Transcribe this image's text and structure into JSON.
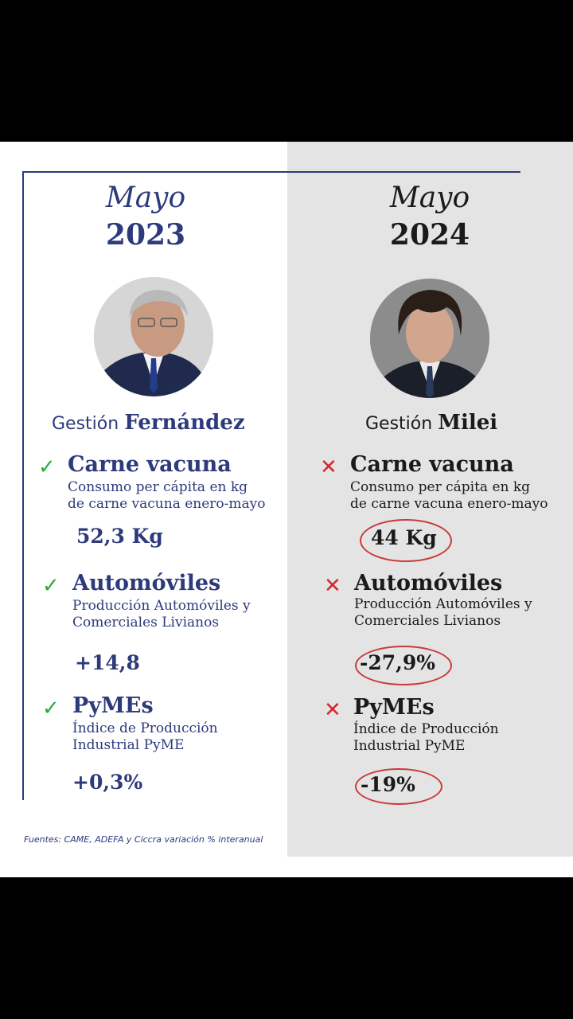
{
  "left": {
    "month": "Mayo",
    "year": "2023",
    "gestion_prefix": "Gestión",
    "gestion_name": "Fernández",
    "metrics": [
      {
        "title": "Carne vacuna",
        "desc1": "Consumo per cápita en kg",
        "desc2": "de carne vacuna enero-mayo",
        "value": "52,3 Kg"
      },
      {
        "title": "Automóviles",
        "desc1": "Producción Automóviles y",
        "desc2": "Comerciales Livianos",
        "value": "+14,8"
      },
      {
        "title": "PyMEs",
        "desc1": "Índice de Producción",
        "desc2": "Industrial PyME",
        "value": "+0,3%"
      }
    ],
    "mark": "✓"
  },
  "right": {
    "month": "Mayo",
    "year": "2024",
    "gestion_prefix": "Gestión",
    "gestion_name": "Milei",
    "metrics": [
      {
        "title": "Carne vacuna",
        "desc1": "Consumo per cápita en kg",
        "desc2": "de carne vacuna enero-mayo",
        "value": "44 Kg"
      },
      {
        "title": "Automóviles",
        "desc1": "Producción Automóviles y",
        "desc2": "Comerciales Livianos",
        "value": "-27,9%"
      },
      {
        "title": "PyMEs",
        "desc1": "Índice de Producción",
        "desc2": "Industrial PyME",
        "value": "-19%"
      }
    ],
    "mark": "✕"
  },
  "sources": "Fuentes: CAME, ADEFA y Ciccra variación % interanual",
  "colors": {
    "navy": "#2d3a7c",
    "check": "#2eaa3a",
    "cross": "#d9262c",
    "right_bg": "#e4e4e4"
  }
}
